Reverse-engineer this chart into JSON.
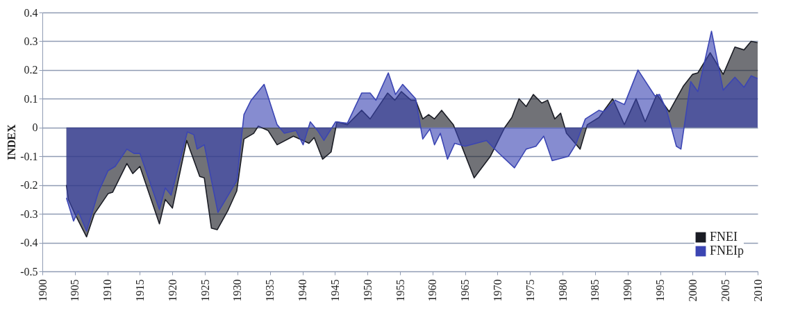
{
  "chart_data": {
    "type": "area",
    "ylabel": "INDEX",
    "xlim": [
      1900,
      2010
    ],
    "xticks": [
      1900,
      1905,
      1910,
      1915,
      1920,
      1925,
      1930,
      1935,
      1940,
      1945,
      1950,
      1955,
      1960,
      1965,
      1970,
      1975,
      1980,
      1985,
      1990,
      1995,
      2000,
      2005,
      2010
    ],
    "ylim": [
      -0.5,
      0.4
    ],
    "yticks": [
      -0.5,
      -0.4,
      -0.3,
      -0.2,
      -0.1,
      0,
      0.1,
      0.2,
      0.3,
      0.4
    ],
    "grid": "y",
    "legend": "bottom right",
    "series": [
      {
        "name": "FNEI",
        "color": "#1a1c24",
        "x": [
          1903.7,
          1904,
          1905,
          1906.8,
          1908,
          1910.1,
          1910.8,
          1913,
          1913.9,
          1915,
          1918,
          1918.9,
          1920,
          1922.2,
          1924.2,
          1924.9,
          1926,
          1926.9,
          1928.5,
          1929.9,
          1931,
          1932.5,
          1933.2,
          1934.7,
          1936.1,
          1938.6,
          1940.1,
          1941,
          1941.8,
          1943.1,
          1944.4,
          1945.3,
          1946.9,
          1949.1,
          1950.4,
          1953.1,
          1954.2,
          1955.2,
          1956.7,
          1957.4,
          1958.5,
          1959.4,
          1960.3,
          1961.4,
          1963.2,
          1966.4,
          1968.9,
          1971.1,
          1972.2,
          1973.3,
          1974.4,
          1975.5,
          1976.8,
          1977.7,
          1978.8,
          1979.7,
          1980.6,
          1982.7,
          1983.8,
          1985.6,
          1987.7,
          1989.5,
          1991.3,
          1992.7,
          1994.5,
          1996.4,
          1998.6,
          2000,
          2000.8,
          2002.7,
          2004.7,
          2006.5,
          2007.9,
          2009,
          2010
        ],
        "values": [
          -0.2,
          -0.25,
          -0.3,
          -0.38,
          -0.3,
          -0.23,
          -0.225,
          -0.125,
          -0.16,
          -0.135,
          -0.335,
          -0.25,
          -0.28,
          -0.045,
          -0.17,
          -0.175,
          -0.35,
          -0.355,
          -0.29,
          -0.22,
          -0.04,
          -0.02,
          0.005,
          -0.01,
          -0.06,
          -0.03,
          -0.045,
          -0.055,
          -0.035,
          -0.11,
          -0.085,
          0.02,
          0.01,
          0.06,
          0.03,
          0.12,
          0.095,
          0.125,
          0.095,
          0.095,
          0.03,
          0.045,
          0.03,
          0.06,
          0.01,
          -0.175,
          -0.1,
          0.0,
          0.035,
          0.1,
          0.073,
          0.115,
          0.085,
          0.095,
          0.03,
          0.05,
          -0.02,
          -0.075,
          0.01,
          0.035,
          0.1,
          0.01,
          0.1,
          0.02,
          0.115,
          0.055,
          0.145,
          0.185,
          0.19,
          0.26,
          0.185,
          0.28,
          0.27,
          0.3,
          0.295
        ]
      },
      {
        "name": "FNEIp",
        "color": "#3b45b3",
        "x": [
          1903.7,
          1904.8,
          1905.5,
          1906.8,
          1908.6,
          1910.1,
          1911.2,
          1913,
          1914.1,
          1915,
          1918,
          1918.9,
          1919.8,
          1922.3,
          1923.3,
          1923.8,
          1924.9,
          1927,
          1928.2,
          1929.9,
          1931,
          1932.1,
          1934.1,
          1936.1,
          1937.2,
          1939,
          1940.1,
          1941.2,
          1942.3,
          1943.3,
          1945.1,
          1946.9,
          1949.1,
          1950.4,
          1951.3,
          1953.2,
          1954.3,
          1955.4,
          1957.4,
          1958.5,
          1959.6,
          1960.3,
          1961.2,
          1962.3,
          1963.4,
          1965,
          1968.3,
          1970,
          1972.6,
          1974.4,
          1975.9,
          1977.1,
          1978.4,
          1980.9,
          1982,
          1983.5,
          1985.6,
          1986.3,
          1988.1,
          1989.5,
          1991.6,
          1994.2,
          1994.9,
          1996,
          1997.5,
          1998.2,
          1999.7,
          2000.8,
          2002.9,
          2004.7,
          2006.5,
          2007.9,
          2009,
          2010
        ],
        "values": [
          -0.245,
          -0.325,
          -0.29,
          -0.36,
          -0.225,
          -0.15,
          -0.135,
          -0.075,
          -0.09,
          -0.09,
          -0.285,
          -0.21,
          -0.235,
          -0.015,
          -0.025,
          -0.075,
          -0.06,
          -0.295,
          -0.25,
          -0.185,
          0.045,
          0.095,
          0.15,
          0.01,
          -0.02,
          -0.01,
          -0.06,
          0.02,
          -0.01,
          -0.045,
          0.02,
          0.015,
          0.12,
          0.12,
          0.095,
          0.19,
          0.115,
          0.15,
          0.1,
          -0.04,
          -0.005,
          -0.06,
          -0.02,
          -0.11,
          -0.055,
          -0.065,
          -0.045,
          -0.085,
          -0.14,
          -0.075,
          -0.065,
          -0.03,
          -0.115,
          -0.1,
          -0.06,
          0.03,
          0.06,
          0.055,
          0.095,
          0.08,
          0.2,
          0.11,
          0.115,
          0.06,
          -0.065,
          -0.075,
          0.16,
          0.125,
          0.335,
          0.13,
          0.175,
          0.14,
          0.18,
          0.17
        ]
      }
    ]
  }
}
